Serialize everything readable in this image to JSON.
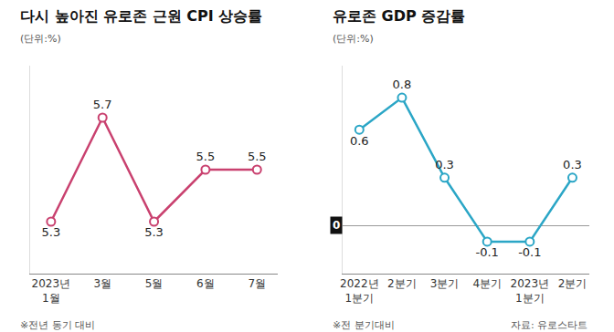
{
  "chart_data": [
    {
      "type": "line",
      "title": "다시 높아진 유로존 근원 CPI 상승률",
      "subtitle": "(단위:%)",
      "categories": [
        "2023년 1월",
        "3월",
        "5월",
        "6월",
        "7월"
      ],
      "values": [
        5.3,
        5.7,
        5.3,
        5.5,
        5.5
      ],
      "color": "#c9416f",
      "marker": "circle",
      "data_labels": true,
      "ylim": [
        5.1,
        5.9
      ],
      "tick_labels": "x",
      "grid": false,
      "note": "※전년 동기 대비"
    },
    {
      "type": "line",
      "title": "유로존 GDP 증감률",
      "subtitle": "(단위:%)",
      "categories": [
        "2022년 1분기",
        "2분기",
        "3분기",
        "4분기",
        "2023년 1분기",
        "2분기"
      ],
      "values": [
        0.6,
        0.8,
        0.3,
        -0.1,
        -0.1,
        0.3
      ],
      "color": "#2ba6c6",
      "marker": "circle",
      "data_labels": true,
      "ylim": [
        -0.3,
        1.0
      ],
      "yticks": [
        0
      ],
      "grid": true,
      "note": "※전 분기대비",
      "source": "자료: 유로스타트"
    }
  ]
}
